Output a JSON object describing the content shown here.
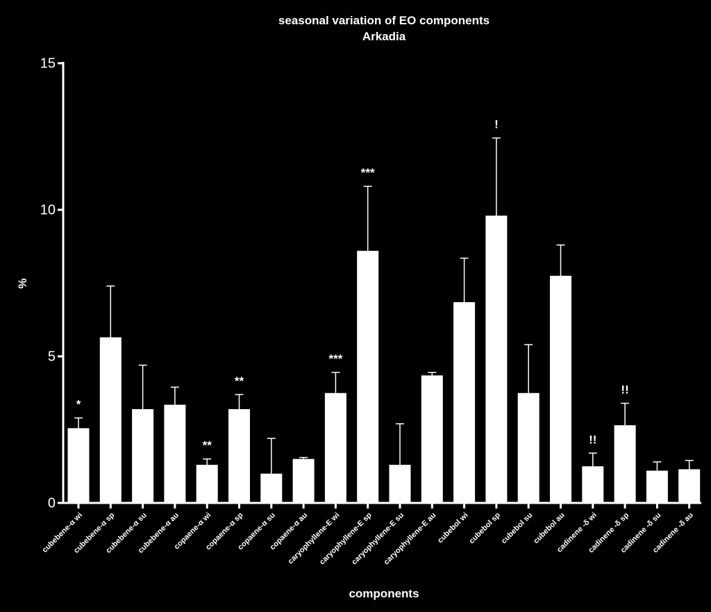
{
  "chart_data": {
    "type": "bar",
    "title": "seasonal variation of EO components",
    "subtitle": "Arkadia",
    "xlabel": "components",
    "ylabel": "%",
    "ylim": [
      0,
      15
    ],
    "yticks": [
      0,
      5,
      10,
      15
    ],
    "grid": false,
    "legend": "none",
    "bar_color": "#ffffff",
    "background_color": "#000000",
    "categories": [
      "cubebene-α wi",
      "cubebene-α sp",
      "cubebene-α su",
      "cubebene-α au",
      "copaene-α wi",
      "copaene-α sp",
      "copaene-α su",
      "copaene-α au",
      "caryophyllene-E wi",
      "caryophyllene-E sp",
      "caryophyllene-E su",
      "caryophyllene-E au",
      "cubebol wi",
      "cubebol sp",
      "cubebol su",
      "cubebol au",
      "cadinene -δ wi",
      "cadinene -δ sp",
      "cadinene -δ su",
      "cadinene -δ au"
    ],
    "values": [
      2.55,
      5.65,
      3.2,
      3.35,
      1.3,
      3.2,
      1.0,
      1.5,
      3.75,
      8.6,
      1.3,
      4.35,
      6.85,
      9.8,
      3.75,
      7.75,
      1.25,
      2.65,
      1.1,
      1.15
    ],
    "error_upper": [
      2.9,
      7.4,
      4.7,
      3.95,
      1.5,
      3.7,
      2.2,
      1.55,
      4.45,
      10.8,
      2.7,
      4.45,
      8.35,
      12.45,
      5.4,
      8.8,
      1.7,
      3.4,
      1.4,
      1.45
    ],
    "annotations": [
      "*",
      "",
      "",
      "",
      "**",
      "**",
      "",
      "",
      "***",
      "***",
      "",
      "",
      "",
      "!",
      "",
      "",
      "!!",
      "!!",
      "",
      ""
    ]
  }
}
